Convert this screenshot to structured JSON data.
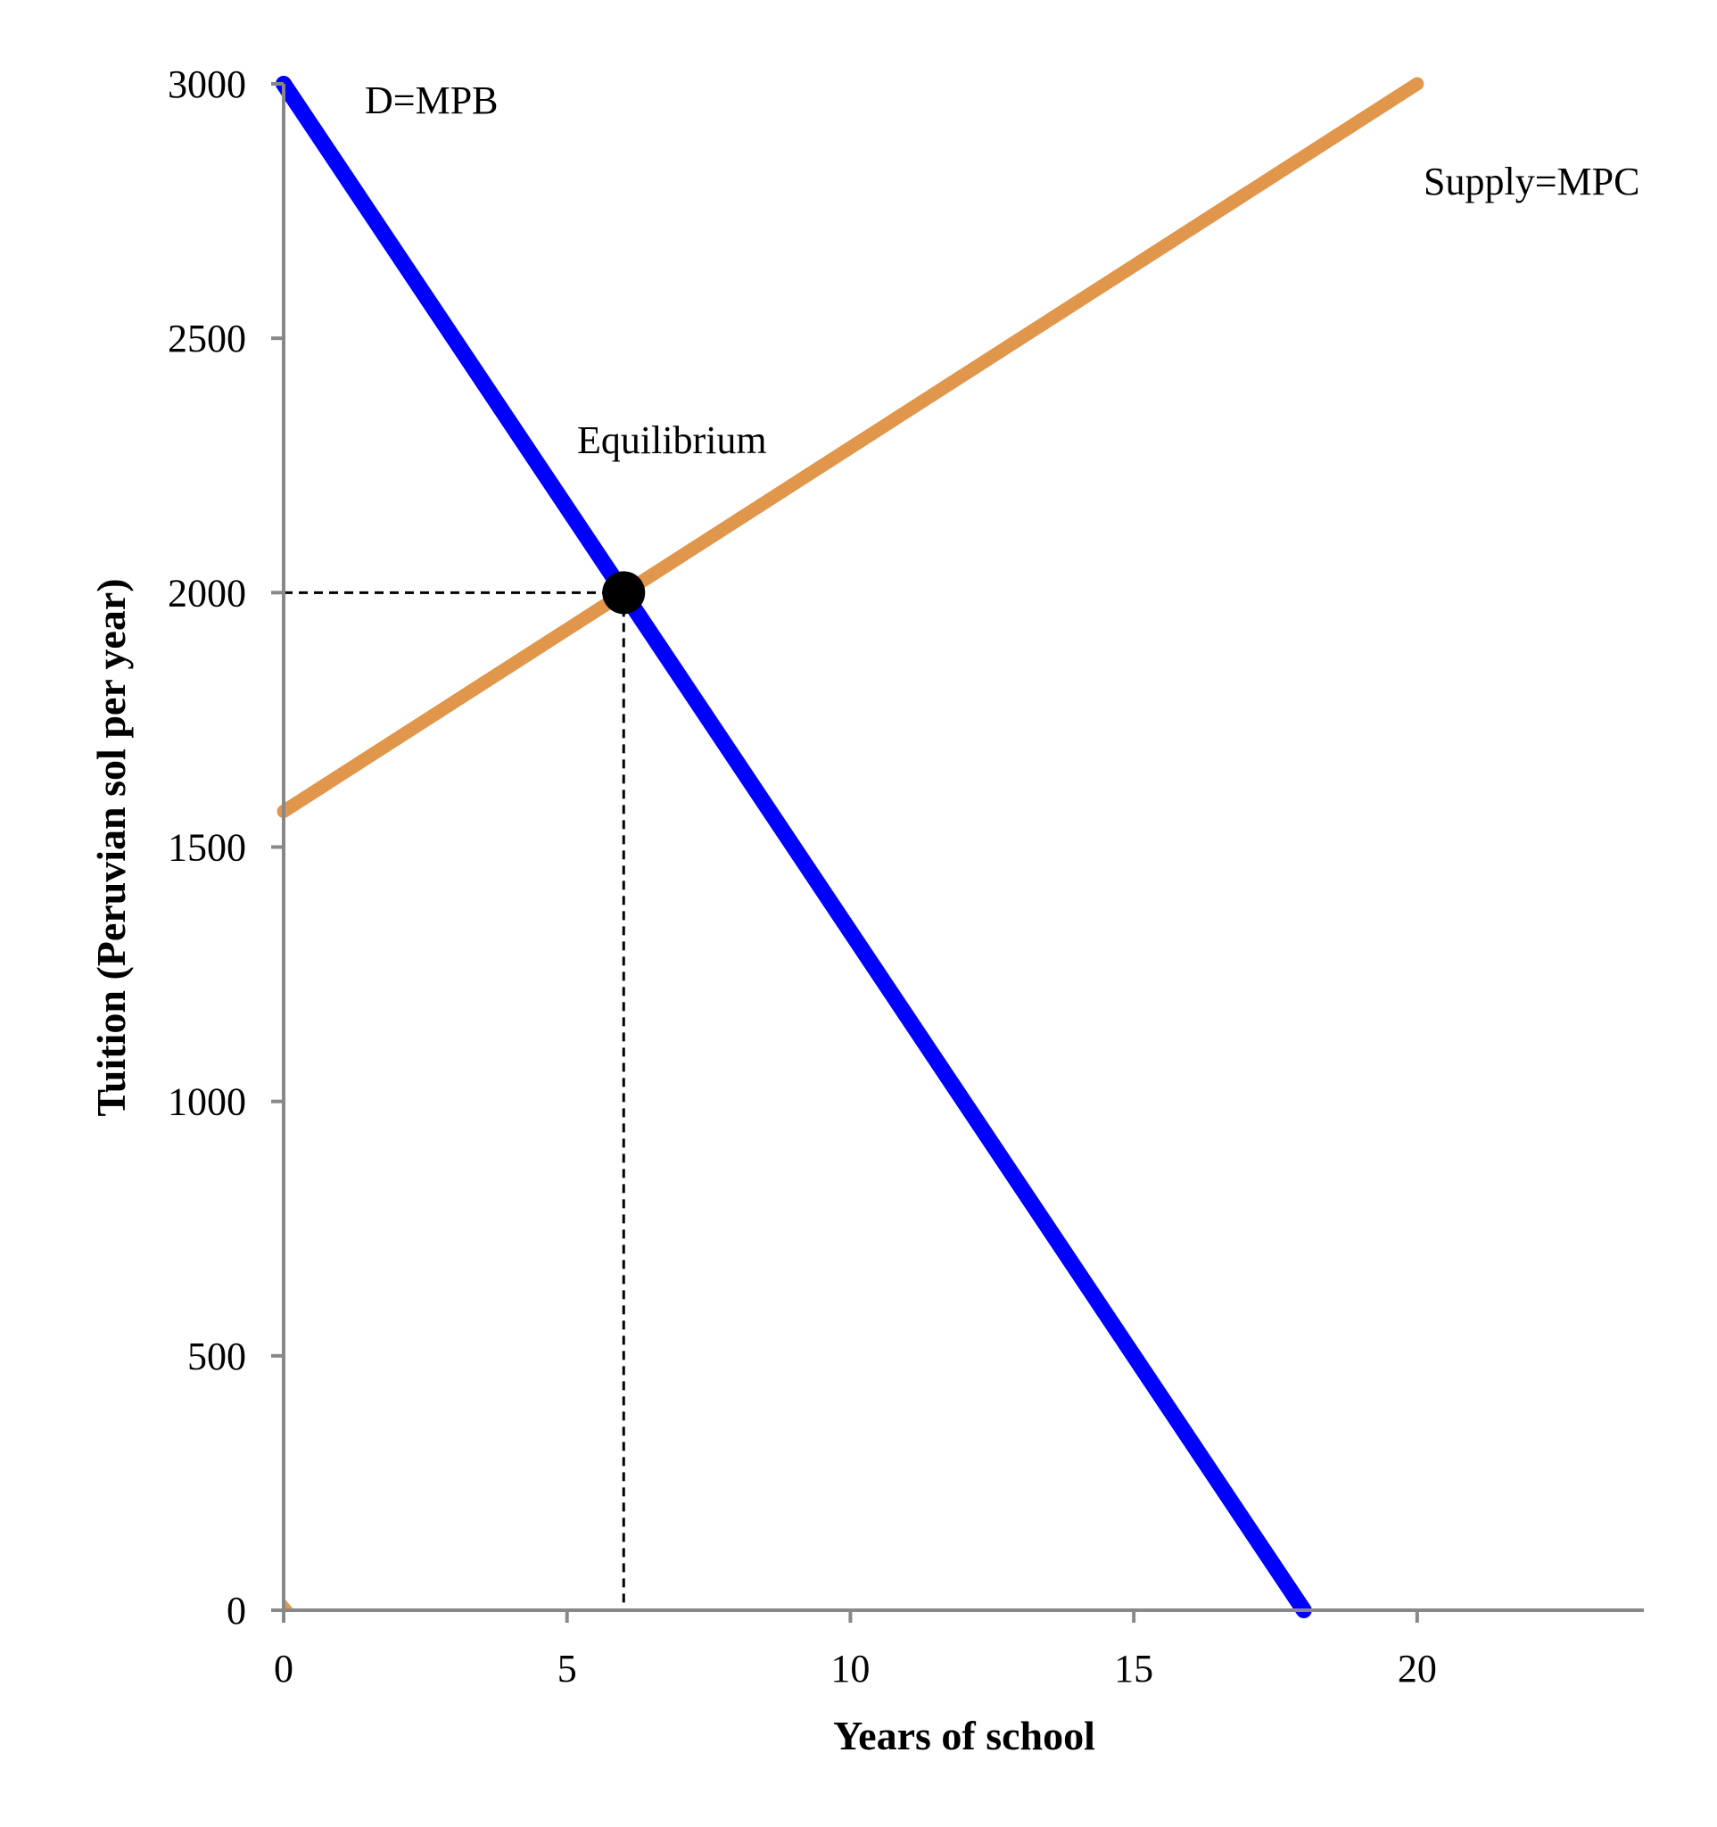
{
  "chart_data": {
    "type": "line",
    "title": "",
    "xlabel": "Years of school",
    "ylabel": "Tuition (Peruvian sol per year)",
    "xlim": [
      0,
      24
    ],
    "ylim": [
      0,
      3000
    ],
    "xticks": [
      0,
      5,
      10,
      15,
      20
    ],
    "yticks": [
      0,
      500,
      1000,
      1500,
      2000,
      2500,
      3000
    ],
    "grid": false,
    "series": [
      {
        "name": "D=MPB",
        "color": "#0000ff",
        "points": [
          [
            0,
            3000
          ],
          [
            18,
            0
          ]
        ]
      },
      {
        "name": "Supply=MPC",
        "color": "#e0964b",
        "points": [
          [
            0,
            1570
          ],
          [
            20,
            3000
          ]
        ]
      }
    ],
    "equilibrium": {
      "label": "Equilibrium",
      "x": 6,
      "y": 2000
    },
    "annotations": [
      "D=MPB",
      "Supply=MPC",
      "Equilibrium"
    ]
  }
}
